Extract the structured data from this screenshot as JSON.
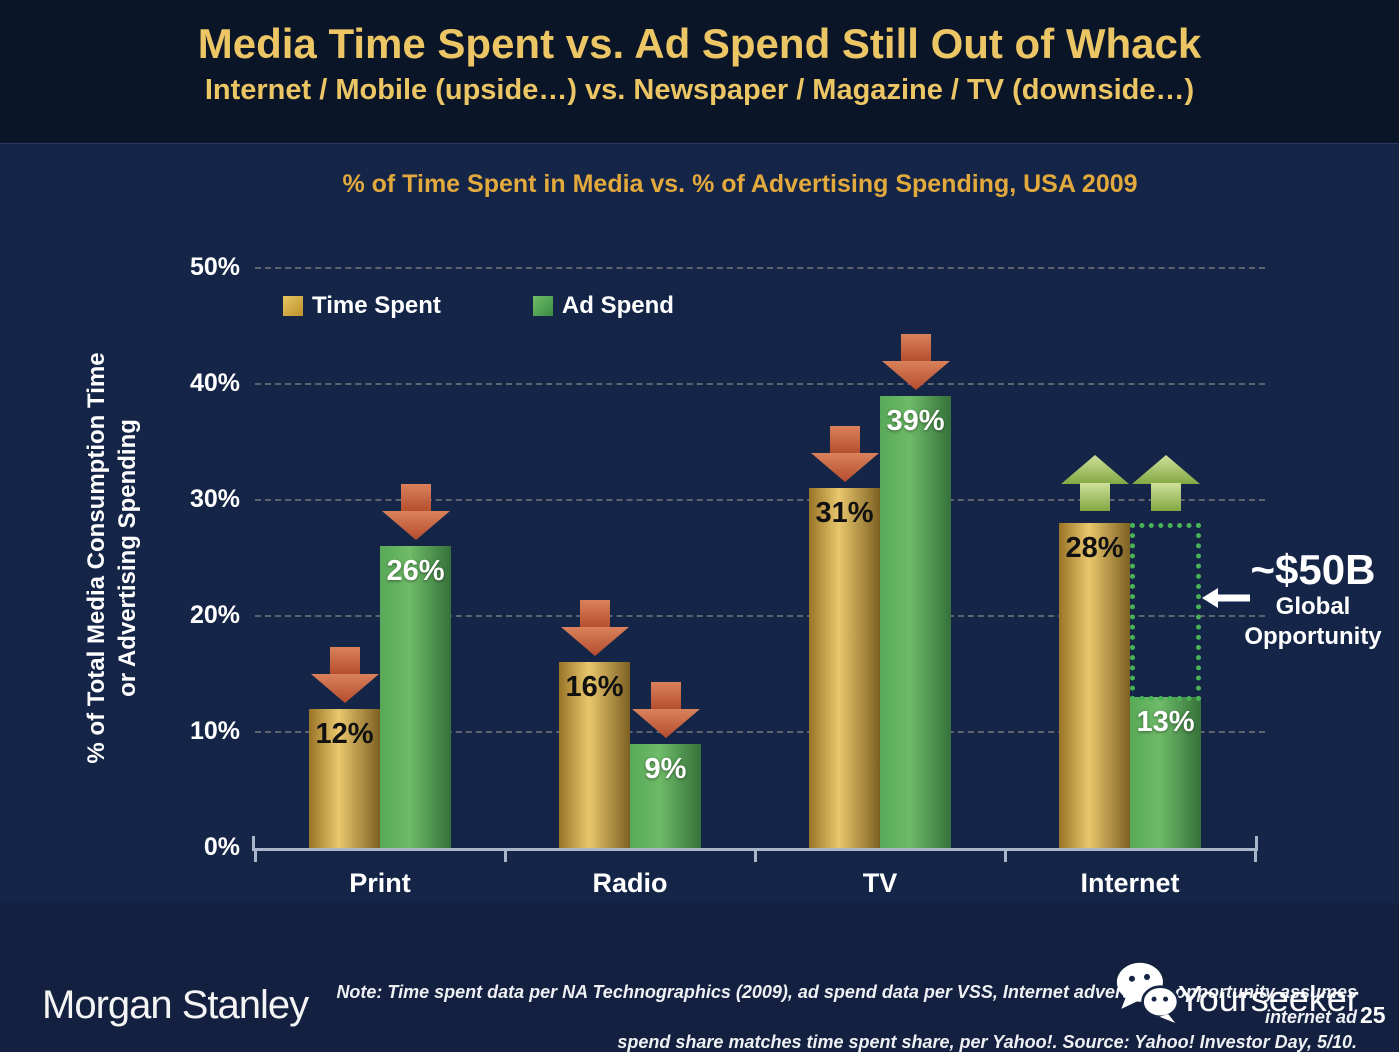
{
  "slide": {
    "title": "Media Time Spent vs. Ad Spend Still Out of Whack",
    "subtitle": "Internet / Mobile (upside…) vs. Newspaper / Magazine / TV (downside…)",
    "page_number": "25"
  },
  "chart_data": {
    "type": "bar",
    "title": "% of Time Spent in Media vs. % of Advertising Spending, USA 2009",
    "ylabel_line1": "% of Total Media Consumption Time",
    "ylabel_line2": "or Advertising Spending",
    "categories": [
      "Print",
      "Radio",
      "TV",
      "Internet"
    ],
    "series": [
      {
        "name": "Time Spent",
        "values": [
          12,
          16,
          31,
          28
        ],
        "labels": [
          "12%",
          "16%",
          "31%",
          "28%"
        ]
      },
      {
        "name": "Ad Spend",
        "values": [
          26,
          9,
          39,
          13
        ],
        "labels": [
          "26%",
          "9%",
          "39%",
          "13%"
        ]
      }
    ],
    "yticks": [
      "0%",
      "10%",
      "20%",
      "30%",
      "40%",
      "50%"
    ],
    "ylim": [
      0,
      50
    ],
    "grid": "dashed-horizontal",
    "legend_position": "top-left-inside",
    "annotations": {
      "arrow_directions": [
        "down",
        "down",
        "down",
        "up"
      ],
      "opportunity": {
        "category_index": 3,
        "from_value": 13,
        "to_value": 28,
        "label_amount": "~$50B",
        "label_line2": "Global",
        "label_line3": "Opportunity"
      }
    },
    "colors": {
      "background_header": "#0a1627",
      "background_chart": "#152547",
      "background_footer": "#13203f",
      "title_gold": "#ecc565",
      "chart_title_gold": "#e2a93c",
      "bar_time_spent_gradient": [
        "#9a7427",
        "#e9c76d",
        "#7d6122"
      ],
      "bar_ad_spend_gradient": [
        "#58a958",
        "#6ebb68",
        "#35713a"
      ],
      "down_arrow_gradient": [
        "#d9825c",
        "#b54c2d"
      ],
      "up_arrow_gradient": [
        "#cfe09b",
        "#82a843"
      ],
      "opportunity_dotted": "#49b457",
      "axis": "#a9b6c9",
      "gridline": "rgba(205,205,180,0.38)"
    }
  },
  "footer": {
    "brand": "Morgan Stanley",
    "note_line1": "Note: Time spent data per NA Technographics (2009), ad spend data per VSS, Internet advertising opportunity assumes internet ad",
    "note_line2": "spend share matches time spent share, per Yahoo!. Source: Yahoo! Investor Day, 5/10.",
    "watermark": "Yourseeker"
  },
  "icons": {
    "down_arrow": "down-arrow-icon",
    "up_arrow": "up-arrow-icon",
    "left_arrow": "left-arrow-icon",
    "wechat": "wechat-icon"
  }
}
